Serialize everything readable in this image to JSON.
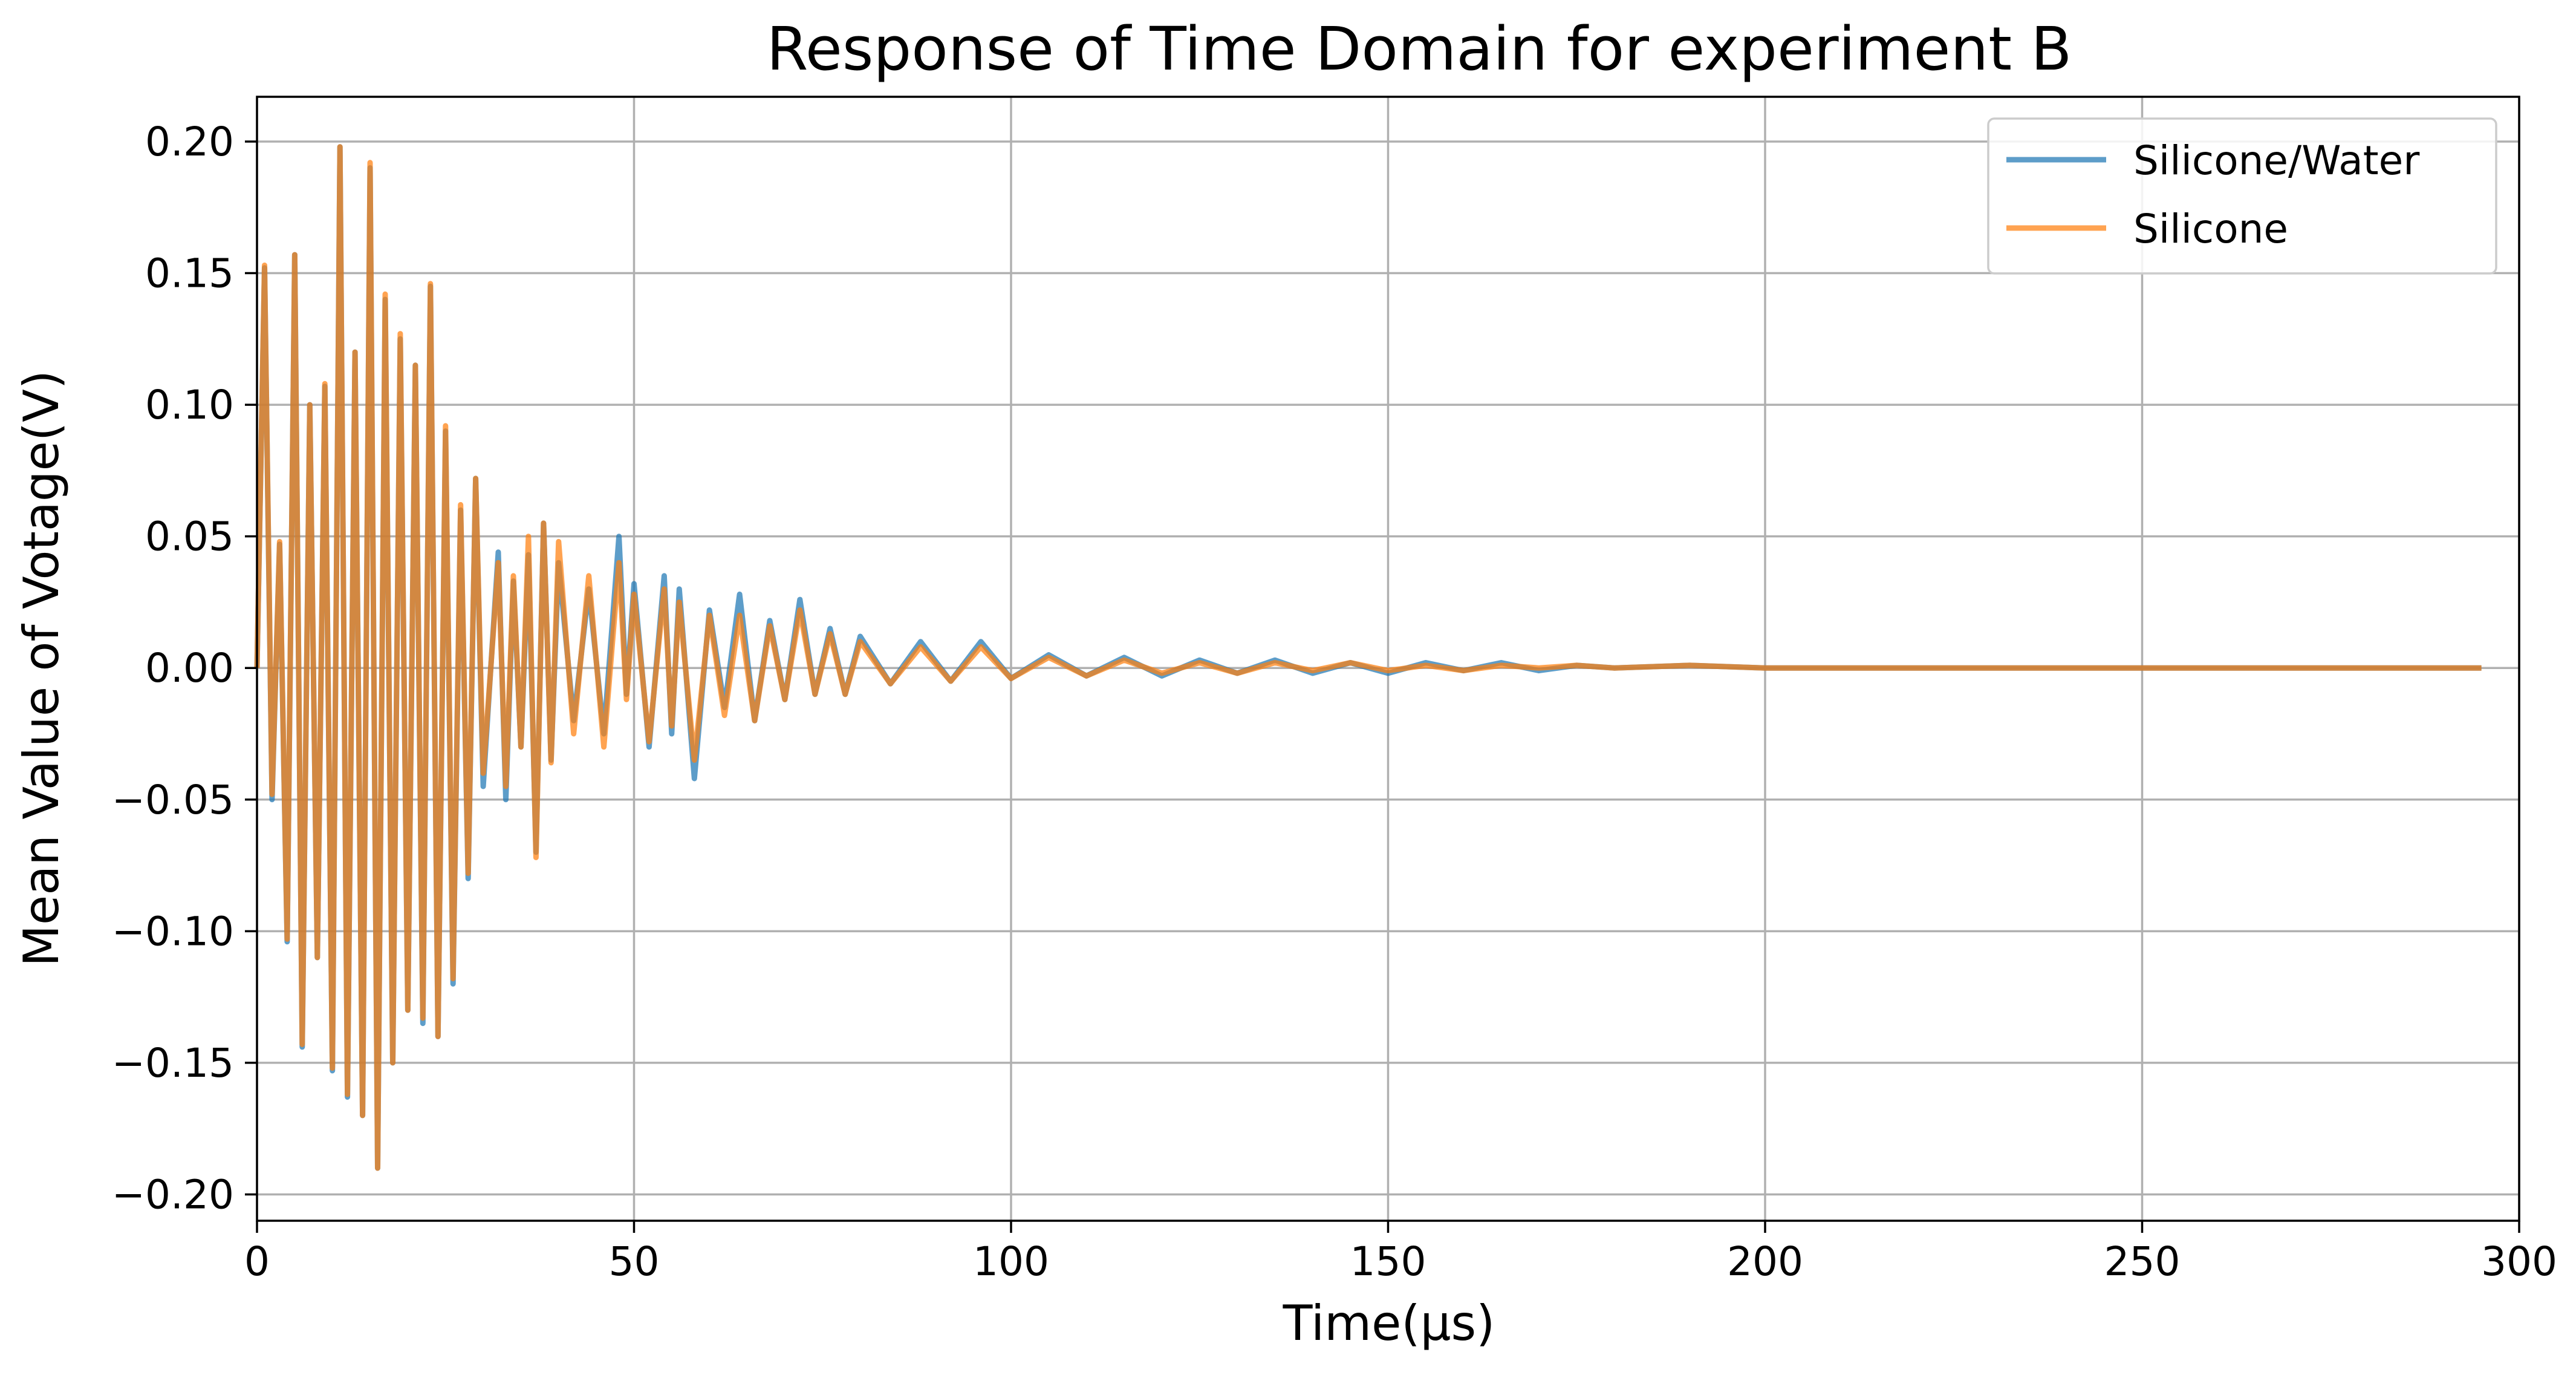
{
  "chart_data": {
    "type": "line",
    "title": "Response of Time Domain for experiment B",
    "xlabel": "Time(μs)",
    "ylabel": "Mean Value of Votage(V)",
    "xlim": [
      0,
      300
    ],
    "ylim": [
      -0.21,
      0.217
    ],
    "x_ticks": [
      0,
      50,
      100,
      150,
      200,
      250,
      300
    ],
    "x_tick_labels": [
      "0",
      "50",
      "100",
      "150",
      "200",
      "250",
      "300"
    ],
    "y_ticks": [
      -0.2,
      -0.15,
      -0.1,
      -0.05,
      0.0,
      0.05,
      0.1,
      0.15,
      0.2
    ],
    "y_tick_labels": [
      "−0.20",
      "−0.15",
      "−0.10",
      "−0.05",
      "0.00",
      "0.05",
      "0.10",
      "0.15",
      "0.20"
    ],
    "grid": true,
    "legend_position": "top-right",
    "series": [
      {
        "name": "Silicone/Water",
        "color": "#1f77b4",
        "x": [
          0,
          1,
          2,
          3,
          4,
          5,
          6,
          7,
          8,
          9,
          10,
          11,
          12,
          13,
          14,
          15,
          16,
          17,
          18,
          19,
          20,
          21,
          22,
          23,
          24,
          25,
          26,
          27,
          28,
          29,
          30,
          31,
          32,
          33,
          34,
          35,
          36,
          37,
          38,
          39,
          40,
          42,
          44,
          46,
          48,
          49,
          50,
          52,
          54,
          55,
          56,
          58,
          60,
          62,
          64,
          66,
          68,
          70,
          72,
          74,
          76,
          78,
          80,
          84,
          88,
          92,
          96,
          100,
          105,
          110,
          115,
          120,
          125,
          130,
          135,
          140,
          145,
          150,
          155,
          160,
          165,
          170,
          175,
          180,
          190,
          200,
          220,
          250,
          295
        ],
        "y": [
          0.0,
          0.152,
          -0.05,
          0.047,
          -0.104,
          0.157,
          -0.144,
          0.1,
          -0.11,
          0.107,
          -0.153,
          0.198,
          -0.163,
          0.12,
          -0.17,
          0.19,
          -0.19,
          0.14,
          -0.15,
          0.125,
          -0.13,
          0.115,
          -0.135,
          0.145,
          -0.14,
          0.09,
          -0.12,
          0.06,
          -0.08,
          0.072,
          -0.045,
          0.0,
          0.044,
          -0.05,
          0.033,
          -0.03,
          0.043,
          -0.07,
          0.055,
          -0.035,
          0.04,
          -0.02,
          0.03,
          -0.025,
          0.05,
          -0.01,
          0.032,
          -0.03,
          0.035,
          -0.025,
          0.03,
          -0.042,
          0.022,
          -0.015,
          0.028,
          -0.02,
          0.018,
          -0.012,
          0.026,
          -0.01,
          0.015,
          -0.01,
          0.012,
          -0.006,
          0.01,
          -0.005,
          0.01,
          -0.004,
          0.005,
          -0.003,
          0.004,
          -0.003,
          0.003,
          -0.002,
          0.003,
          -0.002,
          0.002,
          -0.002,
          0.002,
          -0.001,
          0.002,
          -0.001,
          0.001,
          0.0,
          0.001,
          0.0,
          0.0,
          0.0,
          0.0
        ]
      },
      {
        "name": "Silicone",
        "color": "#ff7f0e",
        "x": [
          0,
          1,
          2,
          3,
          4,
          5,
          6,
          7,
          8,
          9,
          10,
          11,
          12,
          13,
          14,
          15,
          16,
          17,
          18,
          19,
          20,
          21,
          22,
          23,
          24,
          25,
          26,
          27,
          28,
          29,
          30,
          31,
          32,
          33,
          34,
          35,
          36,
          37,
          38,
          39,
          40,
          42,
          44,
          46,
          48,
          49,
          50,
          52,
          54,
          55,
          56,
          58,
          60,
          62,
          64,
          66,
          68,
          70,
          72,
          74,
          76,
          78,
          80,
          84,
          88,
          92,
          96,
          100,
          105,
          110,
          115,
          120,
          125,
          130,
          135,
          140,
          145,
          150,
          155,
          160,
          165,
          170,
          175,
          180,
          190,
          200,
          220,
          250,
          295
        ],
        "y": [
          0.0,
          0.153,
          -0.048,
          0.048,
          -0.103,
          0.157,
          -0.143,
          0.1,
          -0.11,
          0.108,
          -0.152,
          0.198,
          -0.162,
          0.12,
          -0.17,
          0.192,
          -0.19,
          0.142,
          -0.15,
          0.127,
          -0.13,
          0.115,
          -0.133,
          0.146,
          -0.14,
          0.092,
          -0.118,
          0.062,
          -0.078,
          0.072,
          -0.04,
          0.0,
          0.04,
          -0.045,
          0.035,
          -0.03,
          0.05,
          -0.072,
          0.055,
          -0.036,
          0.048,
          -0.025,
          0.035,
          -0.03,
          0.04,
          -0.012,
          0.028,
          -0.028,
          0.03,
          -0.022,
          0.025,
          -0.035,
          0.02,
          -0.018,
          0.02,
          -0.02,
          0.016,
          -0.012,
          0.022,
          -0.01,
          0.013,
          -0.01,
          0.01,
          -0.006,
          0.008,
          -0.005,
          0.008,
          -0.004,
          0.004,
          -0.003,
          0.003,
          -0.002,
          0.002,
          -0.002,
          0.002,
          -0.001,
          0.002,
          -0.001,
          0.001,
          -0.001,
          0.001,
          0.0,
          0.001,
          0.0,
          0.001,
          0.0,
          0.0,
          0.0,
          0.0
        ]
      }
    ]
  }
}
